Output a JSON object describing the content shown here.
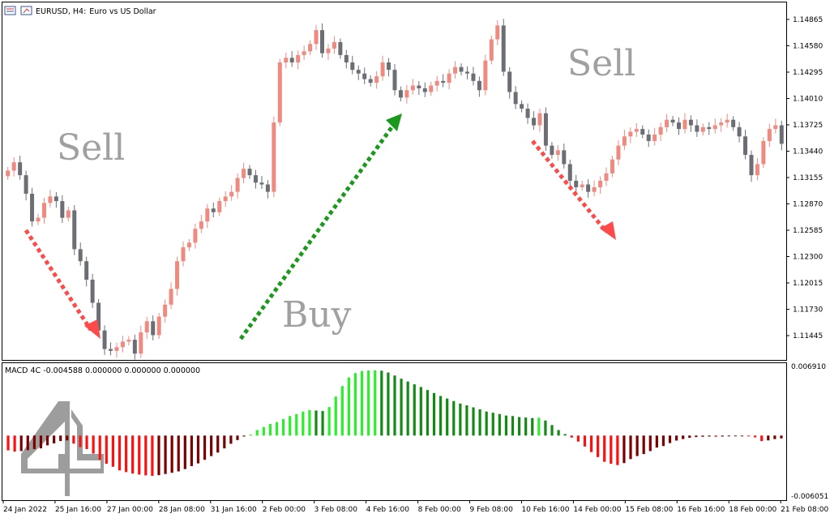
{
  "header": {
    "symbol": "EURUSD, H4:",
    "description": "Euro vs US Dollar"
  },
  "annotations": {
    "sell_left": "Sell",
    "buy": "Buy",
    "sell_right": "Sell"
  },
  "colors": {
    "bull_candle": "#ef8a80",
    "bear_candle": "#6b6f74",
    "hist_pos_rising": "#2aef2a",
    "hist_pos_falling": "#138a13",
    "hist_neg_falling": "#ff1010",
    "hist_neg_rising": "#7a0000",
    "arrow_sell": "#ff4a4a",
    "arrow_buy": "#1a9a1a"
  },
  "chart_data": [
    {
      "type": "candlestick",
      "title": "EURUSD, H4: Euro vs US Dollar",
      "ylim": [
        1.1125,
        1.1505
      ],
      "y_ticks": [
        "1.14865",
        "1.14580",
        "1.14295",
        "1.14010",
        "1.13725",
        "1.13440",
        "1.13155",
        "1.12870",
        "1.12585",
        "1.12300",
        "1.12015",
        "1.11730",
        "1.11445"
      ],
      "x_ticks": [
        "24 Jan 2022",
        "25 Jan 16:00",
        "27 Jan 00:00",
        "28 Jan 08:00",
        "31 Jan 16:00",
        "2 Feb 00:00",
        "3 Feb 08:00",
        "4 Feb 16:00",
        "8 Feb 00:00",
        "9 Feb 08:00",
        "10 Feb 16:00",
        "14 Feb 00:00",
        "15 Feb 08:00",
        "16 Feb 16:00",
        "18 Feb 00:00",
        "21 Feb 08:00"
      ],
      "close_path": [
        1.1323,
        1.1332,
        1.1318,
        1.1298,
        1.1268,
        1.1272,
        1.1288,
        1.1295,
        1.129,
        1.1272,
        1.128,
        1.1238,
        1.1225,
        1.1205,
        1.118,
        1.115,
        1.113,
        1.1128,
        1.1132,
        1.1138,
        1.114,
        1.1125,
        1.1148,
        1.116,
        1.1145,
        1.1165,
        1.1178,
        1.1195,
        1.1225,
        1.124,
        1.1245,
        1.126,
        1.1268,
        1.1282,
        1.1278,
        1.129,
        1.1295,
        1.13,
        1.1315,
        1.1325,
        1.1318,
        1.131,
        1.1308,
        1.13,
        1.1375,
        1.144,
        1.1445,
        1.144,
        1.1448,
        1.1452,
        1.146,
        1.1475,
        1.145,
        1.1455,
        1.1462,
        1.1448,
        1.144,
        1.1432,
        1.1428,
        1.1422,
        1.1418,
        1.1425,
        1.144,
        1.1432,
        1.141,
        1.1402,
        1.141,
        1.1415,
        1.1412,
        1.1408,
        1.1415,
        1.142,
        1.1418,
        1.1428,
        1.1435,
        1.143,
        1.1428,
        1.142,
        1.141,
        1.1442,
        1.1465,
        1.148,
        1.143,
        1.1408,
        1.1395,
        1.139,
        1.138,
        1.1372,
        1.1385,
        1.135,
        1.134,
        1.1345,
        1.133,
        1.1312,
        1.1305,
        1.1308,
        1.13,
        1.1305,
        1.1312,
        1.132,
        1.1335,
        1.135,
        1.136,
        1.1365,
        1.1368,
        1.1362,
        1.1355,
        1.1362,
        1.137,
        1.1378,
        1.1375,
        1.1368,
        1.1378,
        1.1372,
        1.1365,
        1.137,
        1.1368,
        1.1372,
        1.1375,
        1.1378,
        1.137,
        1.136,
        1.134,
        1.1318,
        1.133,
        1.1355,
        1.1368,
        1.1372,
        1.1352
      ]
    },
    {
      "type": "bar",
      "title": "MACD 4C -0.004588 0.000000 0.000000 0.000000",
      "ylim": [
        -0.006051,
        0.00691
      ],
      "y_ticks": [
        "0.006910",
        "-0.006051"
      ],
      "values": [
        -0.00148,
        -0.0016,
        -0.00155,
        -0.00146,
        -0.00135,
        -0.00128,
        -0.00098,
        -0.00078,
        -0.00055,
        -0.00048,
        -0.0008,
        -0.00115,
        -0.00135,
        -0.0018,
        -0.00242,
        -0.00282,
        -0.00312,
        -0.00348,
        -0.00365,
        -0.0038,
        -0.0039,
        -0.00398,
        -0.00402,
        -0.00396,
        -0.00384,
        -0.00372,
        -0.00358,
        -0.00335,
        -0.00305,
        -0.00278,
        -0.00242,
        -0.00205,
        -0.0017,
        -0.00128,
        -0.00082,
        -0.00045,
        -0.0001,
        0.0001,
        0.00055,
        0.00085,
        0.00115,
        0.00135,
        0.00165,
        0.00195,
        0.00215,
        0.0024,
        0.00255,
        0.0025,
        0.00245,
        0.00285,
        0.0039,
        0.00495,
        0.0058,
        0.00625,
        0.00645,
        0.0065,
        0.00652,
        0.00648,
        0.0063,
        0.006,
        0.00568,
        0.0054,
        0.00512,
        0.00485,
        0.00455,
        0.00425,
        0.00395,
        0.0037,
        0.00345,
        0.0032,
        0.00302,
        0.00282,
        0.00262,
        0.0024,
        0.00228,
        0.00215,
        0.002,
        0.00195,
        0.00185,
        0.0018,
        0.00175,
        0.00178,
        0.0015,
        0.00105,
        0.00055,
        0.00015,
        -0.0002,
        -0.0006,
        -0.0011,
        -0.00165,
        -0.00215,
        -0.00262,
        -0.00282,
        -0.00295,
        -0.00275,
        -0.00235,
        -0.00205,
        -0.00185,
        -0.00155,
        -0.0012,
        -0.00105,
        -0.00075,
        -0.0005,
        -0.00035,
        -0.00022,
        -0.00015,
        -0.00012,
        -0.0001,
        -0.00012,
        -0.0001,
        -8e-05,
        -5e-05,
        -4e-05,
        -6e-05,
        -0.00018,
        -0.00055,
        -0.00048,
        -0.00035,
        -0.00028
      ]
    }
  ],
  "watermark": "logo"
}
